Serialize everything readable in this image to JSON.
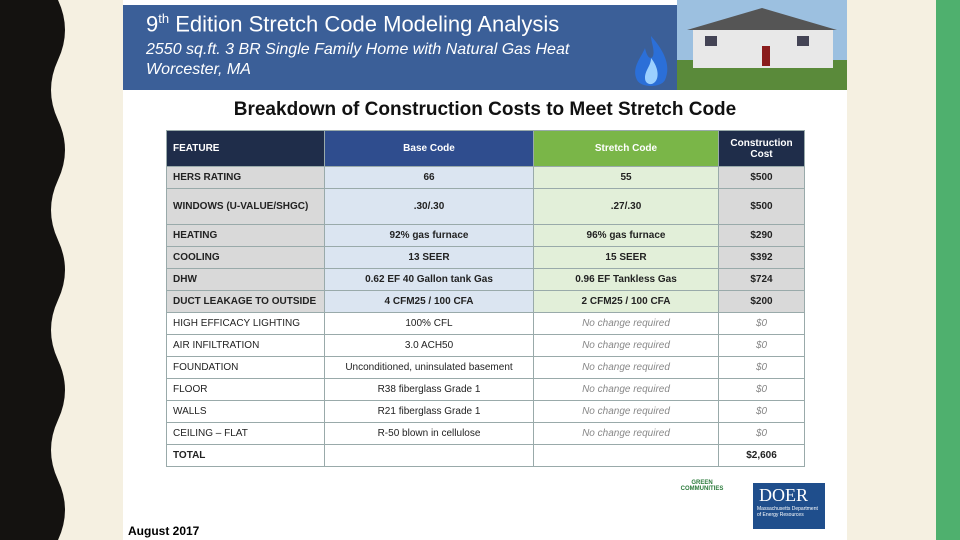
{
  "header": {
    "title_number": "9",
    "title_sup": "th",
    "title_rest": "Edition Stretch Code Modeling Analysis",
    "subtitle_1": "2550 sq.ft. 3 BR Single Family Home with Natural Gas Heat",
    "subtitle_2": "Worcester, MA"
  },
  "heading": "Breakdown of Construction Costs to Meet Stretch Code",
  "table": {
    "columns": [
      "FEATURE",
      "Base Code",
      "Stretch Code",
      "Construction Cost"
    ],
    "rows": [
      [
        "HERS RATING",
        "66",
        "55",
        "$500"
      ],
      [
        "WINDOWS (U-VALUE/SHGC)",
        ".30/.30",
        ".27/.30",
        "$500"
      ],
      [
        "HEATING",
        "92% gas furnace",
        "96% gas furnace",
        "$290"
      ],
      [
        "COOLING",
        "13 SEER",
        "15 SEER",
        "$392"
      ],
      [
        "DHW",
        "0.62 EF 40 Gallon tank Gas",
        "0.96 EF Tankless Gas",
        "$724"
      ],
      [
        "DUCT LEAKAGE TO OUTSIDE",
        "4 CFM25 / 100 CFA",
        "2 CFM25 / 100 CFA",
        "$200"
      ],
      [
        "HIGH EFFICACY LIGHTING",
        "100% CFL",
        "No change required",
        "$0"
      ],
      [
        "AIR INFILTRATION",
        "3.0 ACH50",
        "No change required",
        "$0"
      ],
      [
        "FOUNDATION",
        "Unconditioned, uninsulated basement",
        "No change required",
        "$0"
      ],
      [
        "FLOOR",
        "R38 fiberglass Grade 1",
        "No change required",
        "$0"
      ],
      [
        "WALLS",
        "R21 fiberglass Grade 1",
        "No change required",
        "$0"
      ],
      [
        "CEILING – FLAT",
        "R-50 blown in cellulose",
        "No change required",
        "$0"
      ],
      [
        "TOTAL",
        "",
        "",
        "$2,606"
      ]
    ]
  },
  "logos": {
    "green": "GREEN COMMUNITIES",
    "doer": "DOER",
    "doer_sub": "Massachusetts Department of Energy Resources"
  },
  "footer": "August 2017"
}
